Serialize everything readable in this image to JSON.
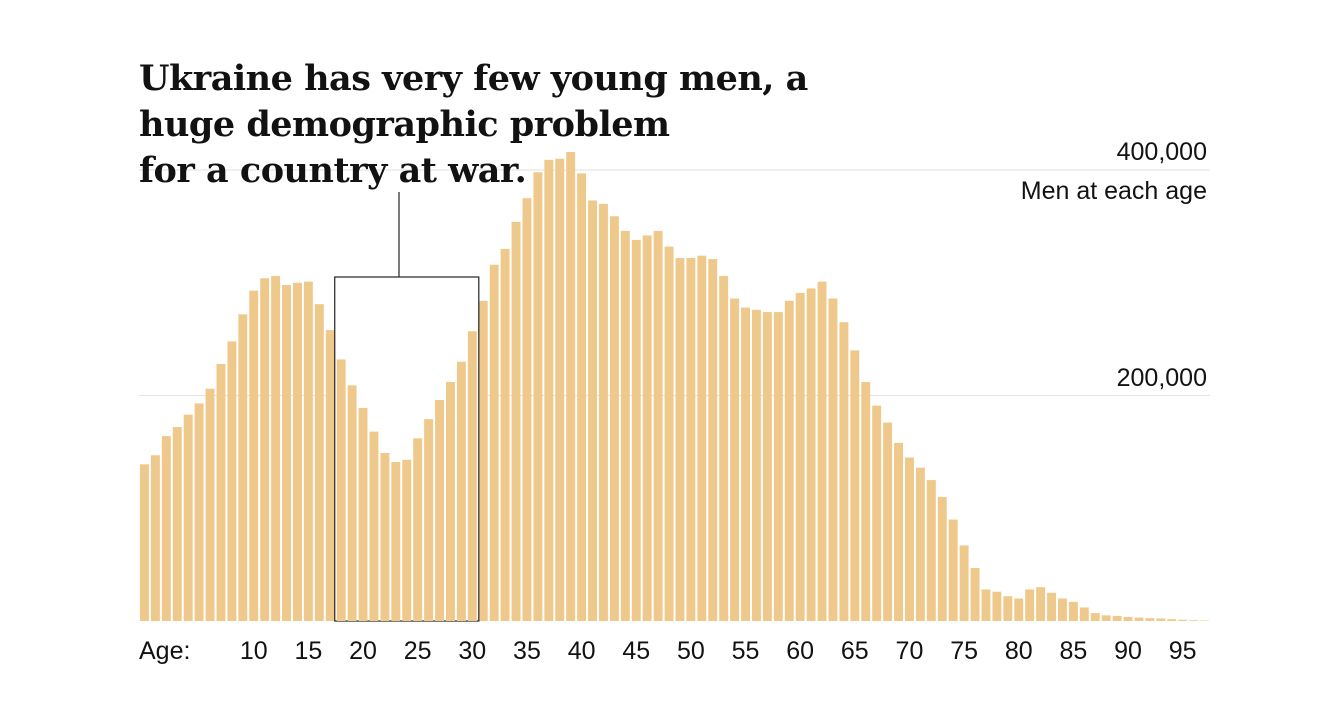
{
  "chart_data": {
    "type": "bar",
    "title": "Ukraine has very few young men, a huge demographic problem for a country at war.",
    "title_lines": [
      "Ukraine has very few young men, a",
      "huge demographic problem",
      "for a country at war."
    ],
    "ylabel": "Men at each age",
    "xlabel": "Age:",
    "ylim": [
      0,
      400000
    ],
    "yticks": [
      {
        "value": 400000,
        "label": "400,000"
      },
      {
        "value": 200000,
        "label": "200,000"
      }
    ],
    "x_start_age": 0,
    "xtick_labels": [
      "10",
      "15",
      "20",
      "25",
      "30",
      "35",
      "40",
      "45",
      "50",
      "55",
      "60",
      "65",
      "70",
      "75",
      "80",
      "85",
      "90",
      "95"
    ],
    "xtick_ages": [
      10,
      15,
      20,
      25,
      30,
      35,
      40,
      45,
      50,
      55,
      60,
      65,
      70,
      75,
      80,
      85,
      90,
      95
    ],
    "highlight_range": [
      18,
      30
    ],
    "bar_color": "#efc98c",
    "values": [
      139000,
      147000,
      164000,
      172000,
      183000,
      193000,
      206000,
      228000,
      248000,
      272000,
      293000,
      304000,
      306000,
      298000,
      300000,
      301000,
      281000,
      258000,
      232000,
      209000,
      189000,
      168000,
      149000,
      141000,
      143000,
      162000,
      179000,
      196000,
      212000,
      230000,
      257000,
      284000,
      316000,
      330000,
      354000,
      375000,
      398000,
      409000,
      410000,
      416000,
      397000,
      373000,
      370000,
      359000,
      346000,
      338000,
      342000,
      346000,
      332000,
      322000,
      322000,
      324000,
      321000,
      306000,
      286000,
      278000,
      276000,
      274000,
      274000,
      284000,
      291000,
      295000,
      301000,
      286000,
      265000,
      240000,
      212000,
      191000,
      176000,
      158000,
      145000,
      136000,
      125000,
      110000,
      90000,
      67000,
      47000,
      28000,
      26000,
      22000,
      20000,
      28000,
      30000,
      25000,
      20000,
      17000,
      12000,
      7000,
      5000,
      4500,
      3600,
      3000,
      2500,
      2200,
      1600,
      1100,
      700,
      400
    ]
  }
}
